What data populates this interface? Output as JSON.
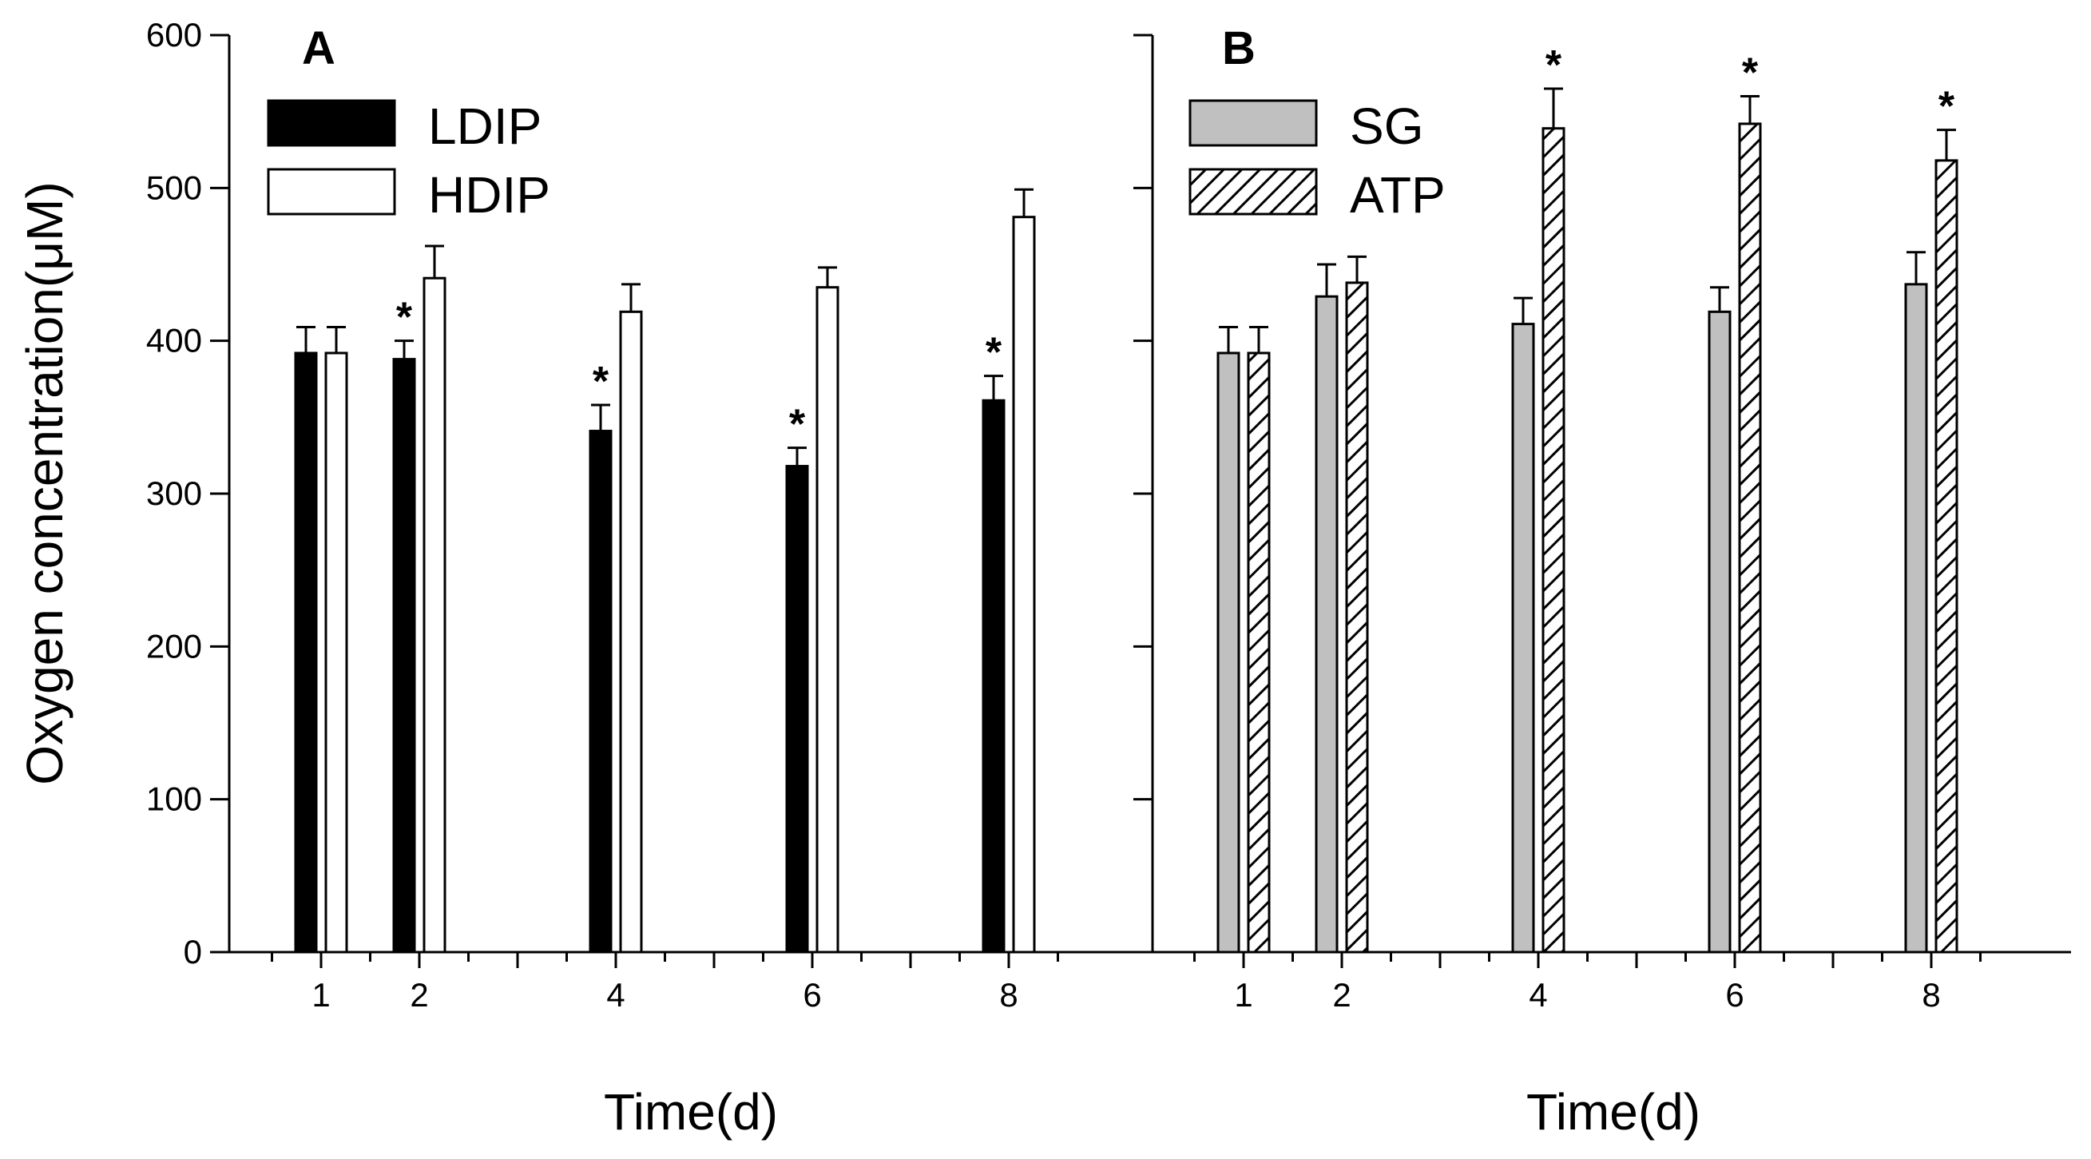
{
  "chart_data": [
    {
      "panel": "A",
      "type": "bar",
      "title": "A",
      "xlabel": "Time(d)",
      "ylabel": "Oxygen concentration(μM)",
      "ylim": [
        0,
        600
      ],
      "yticks": [
        0,
        100,
        200,
        300,
        400,
        500,
        600
      ],
      "categories": [
        "1",
        "2",
        "4",
        "6",
        "8"
      ],
      "x": [
        1,
        2,
        4,
        6,
        8
      ],
      "legend_position": "top-left",
      "series": [
        {
          "name": "LDIP",
          "style": "solid",
          "values": [
            392,
            388,
            341,
            318,
            361
          ],
          "errors": [
            17,
            12,
            17,
            12,
            16
          ],
          "significant": [
            false,
            true,
            true,
            true,
            true
          ]
        },
        {
          "name": "HDIP",
          "style": "open",
          "values": [
            392,
            441,
            419,
            435,
            481
          ],
          "errors": [
            17,
            21,
            18,
            13,
            18
          ],
          "significant": [
            false,
            false,
            false,
            false,
            false
          ]
        }
      ],
      "significance_marker": "*"
    },
    {
      "panel": "B",
      "type": "bar",
      "title": "B",
      "xlabel": "Time(d)",
      "ylabel": "",
      "ylim": [
        0,
        600
      ],
      "yticks": [
        0,
        100,
        200,
        300,
        400,
        500,
        600
      ],
      "categories": [
        "1",
        "2",
        "4",
        "6",
        "8"
      ],
      "x": [
        1,
        2,
        4,
        6,
        8
      ],
      "legend_position": "top-left",
      "series": [
        {
          "name": "SG",
          "style": "gray",
          "values": [
            392,
            429,
            411,
            419,
            437
          ],
          "errors": [
            17,
            21,
            17,
            16,
            21
          ],
          "significant": [
            false,
            false,
            false,
            false,
            false
          ]
        },
        {
          "name": "ATP",
          "style": "hatched",
          "values": [
            392,
            438,
            539,
            542,
            518
          ],
          "errors": [
            17,
            17,
            26,
            18,
            20
          ],
          "significant": [
            false,
            false,
            true,
            true,
            true
          ]
        }
      ],
      "significance_marker": "*"
    }
  ],
  "colors": {
    "solid": "#000000",
    "open": "#ffffff",
    "gray": "#c0c0c0",
    "hatch": "#000000",
    "axis": "#000000"
  }
}
